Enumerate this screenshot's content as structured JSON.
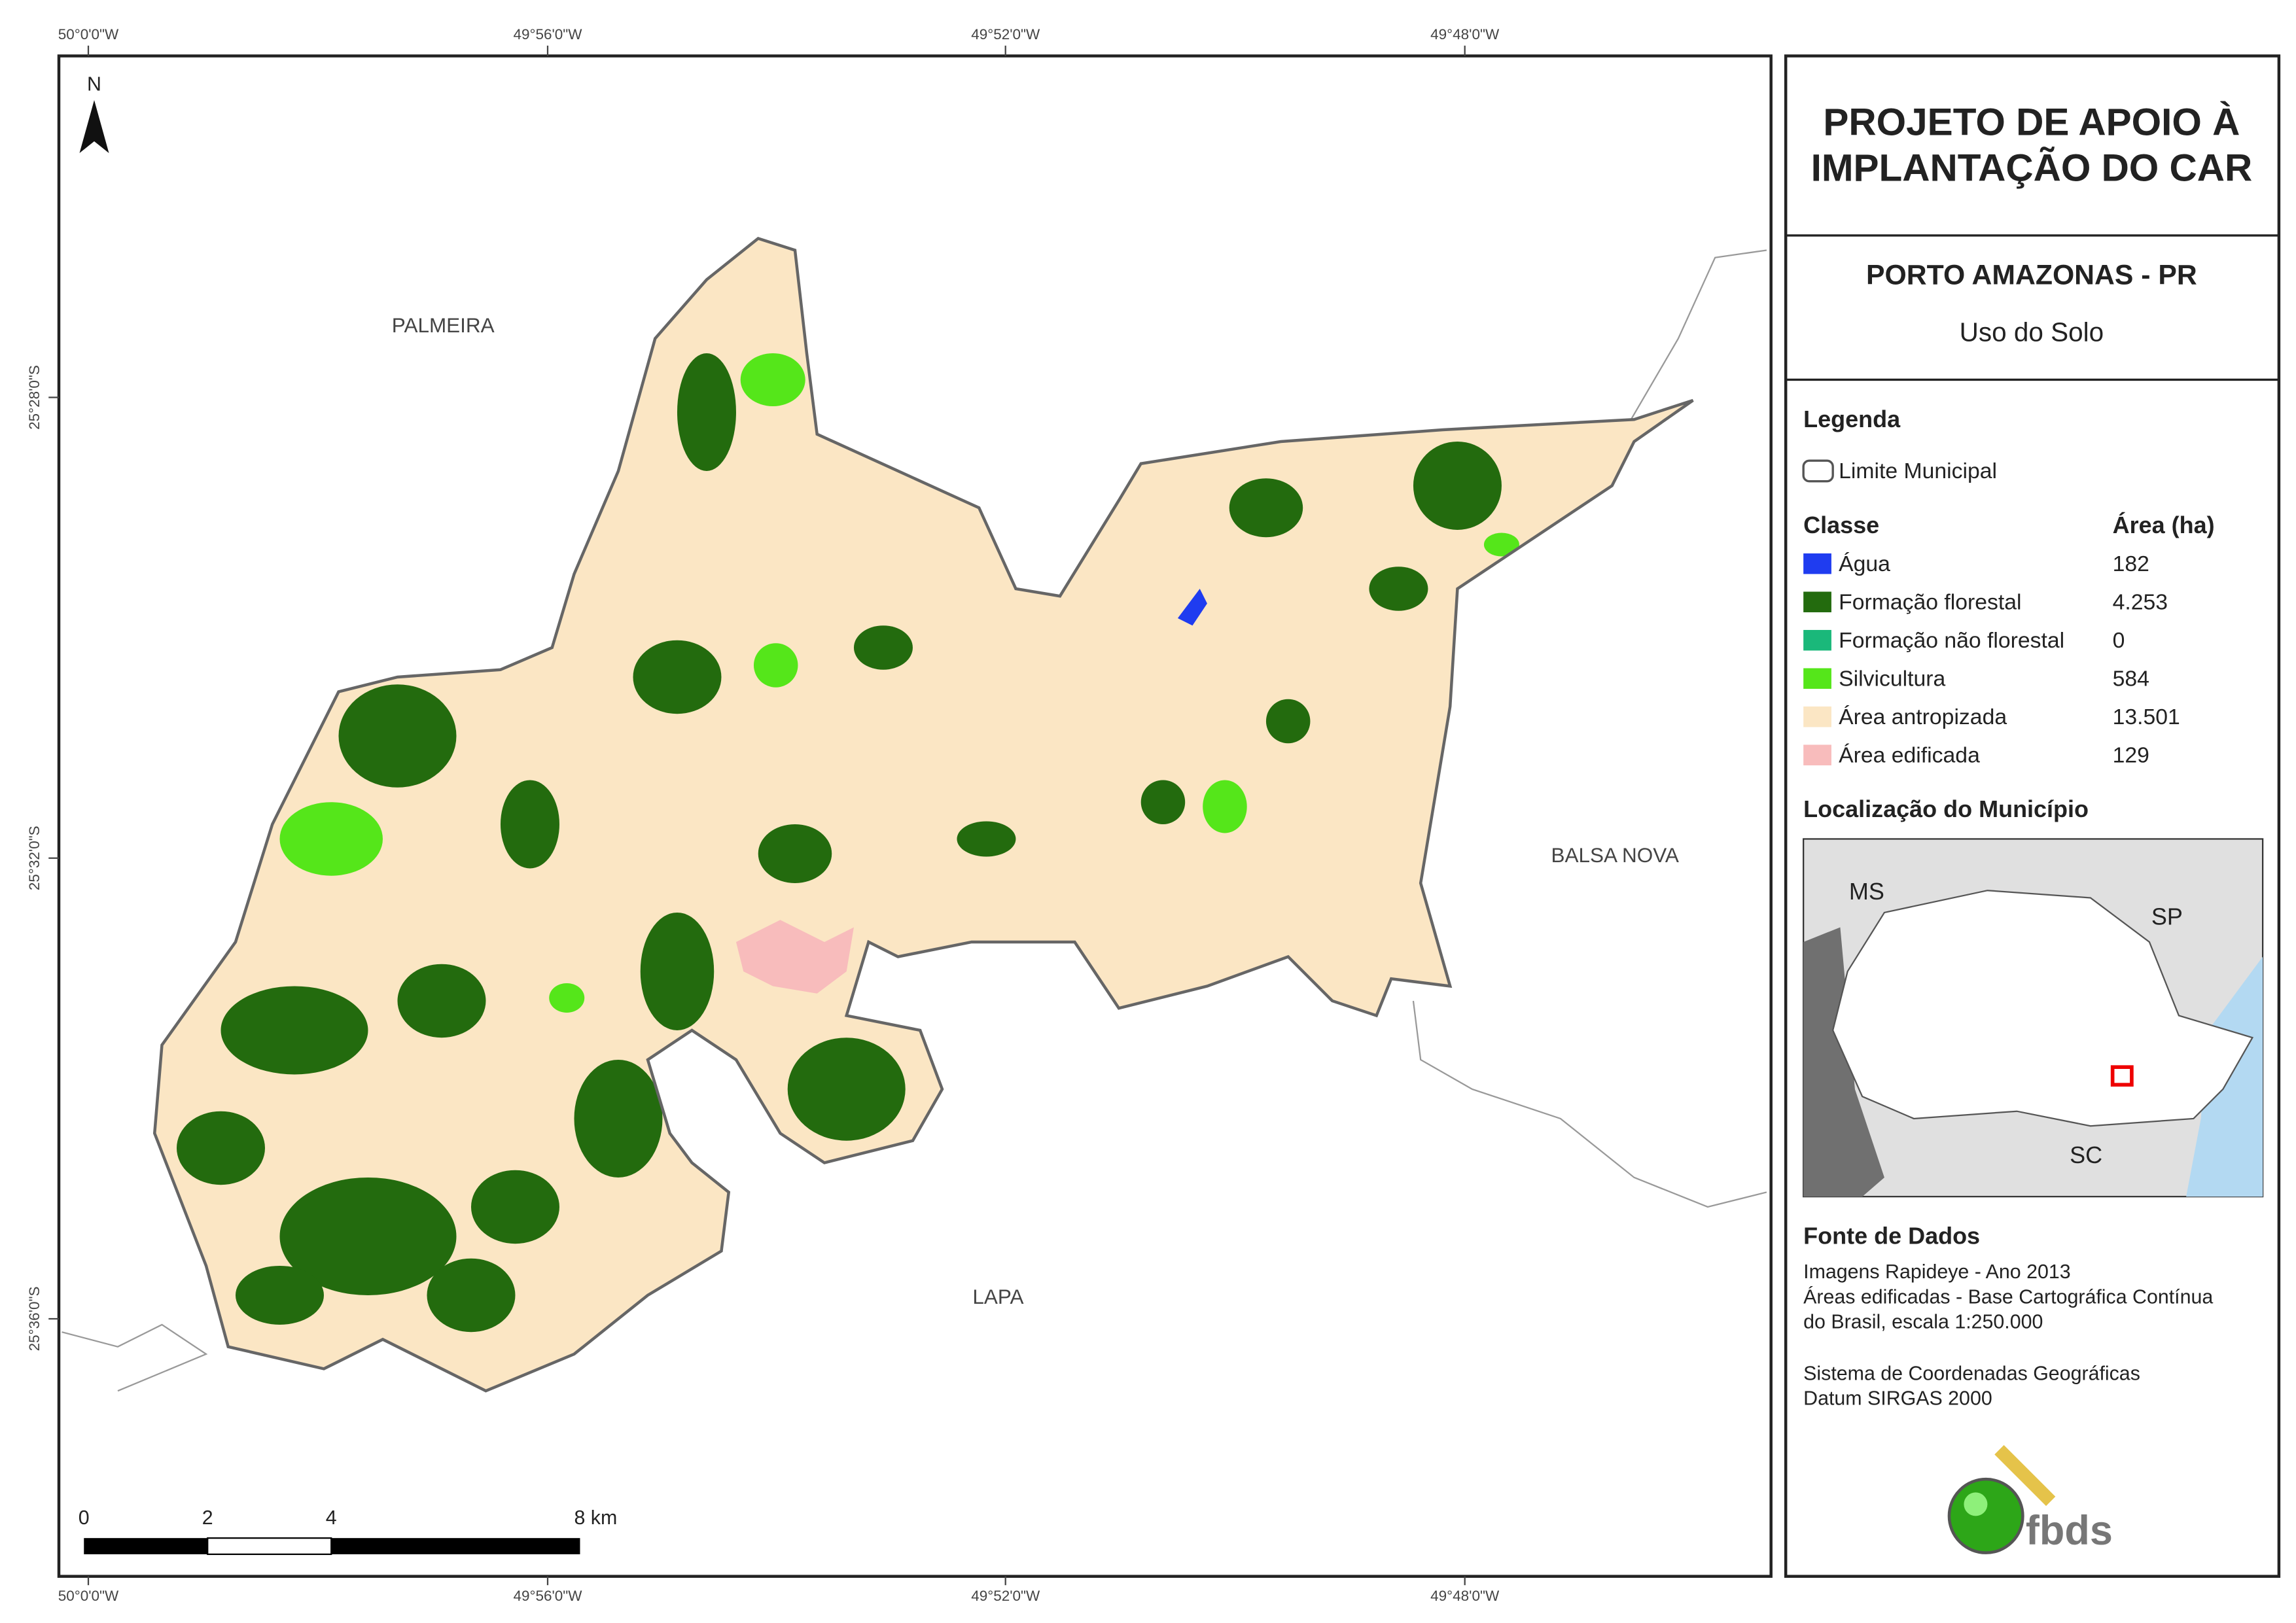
{
  "map": {
    "graticule": {
      "top": [
        "50°0'0\"W",
        "49°56'0\"W",
        "49°52'0\"W",
        "49°48'0\"W"
      ],
      "bottom": [
        "50°0'0\"W",
        "49°56'0\"W",
        "49°52'0\"W",
        "49°48'0\"W"
      ],
      "left": [
        "25°28'0\"S",
        "25°32'0\"S",
        "25°36'0\"S"
      ]
    },
    "north": "N",
    "places": [
      "PALMEIRA",
      "BALSA NOVA",
      "LAPA"
    ],
    "scale_bar": [
      "0",
      "2",
      "4",
      "8 km"
    ]
  },
  "panel": {
    "title": [
      "PROJETO DE APOIO À",
      "IMPLANTAÇÃO DO CAR"
    ],
    "municipality": "PORTO AMAZONAS - PR",
    "subtitle": "Uso do Solo",
    "legend": {
      "heading": "Legenda",
      "boundary": "Limite Municipal",
      "class_header": "Classe",
      "area_header": "Área (ha)",
      "rows": [
        {
          "label": "Água",
          "area": "182",
          "color": "#1f3cf0"
        },
        {
          "label": "Formação florestal",
          "area": "4.253",
          "color": "#236b0e"
        },
        {
          "label": "Formação não florestal",
          "area": "0",
          "color": "#1ab87a"
        },
        {
          "label": "Silvicultura",
          "area": "584",
          "color": "#55e61a"
        },
        {
          "label": "Área antropizada",
          "area": "13.501",
          "color": "#fbe6c4"
        },
        {
          "label": "Área edificada",
          "area": "129",
          "color": "#f8bcbc"
        }
      ]
    },
    "location": {
      "heading": "Localização do Município",
      "labels": [
        "MS",
        "SP",
        "SC"
      ]
    },
    "sources": {
      "heading": "Fonte de Dados",
      "lines": [
        "Imagens Rapideye - Ano 2013",
        "Áreas edificadas - Base Cartográfica Contínua",
        "do Brasil, escala 1:250.000",
        "Sistema de Coordenadas Geográficas",
        "Datum SIRGAS 2000"
      ]
    },
    "logo": "fbds"
  }
}
